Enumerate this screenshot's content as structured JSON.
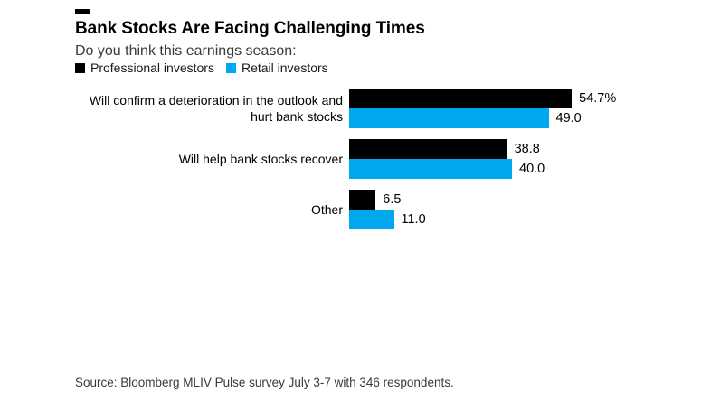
{
  "header": {
    "title": "Bank Stocks Are Facing Challenging Times",
    "subtitle": "Do you think this earnings season:"
  },
  "legend": {
    "items": [
      {
        "label": "Professional investors",
        "color": "#000000"
      },
      {
        "label": "Retail investors",
        "color": "#00a8f0"
      }
    ]
  },
  "chart_data": {
    "type": "bar",
    "orientation": "horizontal",
    "title": "Bank Stocks Are Facing Challenging Times",
    "subtitle": "Do you think this earnings season:",
    "categories": [
      "Will confirm a deterioration in the outlook and hurt bank stocks",
      "Will help bank stocks recover",
      "Other"
    ],
    "category_label_lines": [
      [
        "Will confirm a deterioration in the outlook and",
        "hurt bank stocks"
      ],
      [
        "Will help bank stocks recover"
      ],
      [
        "Other"
      ]
    ],
    "series": [
      {
        "name": "Professional investors",
        "color": "#000000",
        "values": [
          54.7,
          38.8,
          6.5
        ]
      },
      {
        "name": "Retail investors",
        "color": "#00a8f0",
        "values": [
          49.0,
          40.0,
          11.0
        ]
      }
    ],
    "value_labels": [
      [
        "54.7%",
        "49.0"
      ],
      [
        "38.8",
        "40.0"
      ],
      [
        "6.5",
        "11.0"
      ]
    ],
    "units": "percent",
    "xlim": [
      0,
      60
    ],
    "grid": false,
    "axis_ticks": "none",
    "legend_position": "top-left"
  },
  "footer": {
    "source": "Source: Bloomberg MLIV Pulse survey July 3-7 with 346 respondents."
  },
  "colors": {
    "professional": "#000000",
    "retail": "#00a8f0",
    "text_primary": "#000000",
    "text_secondary": "#3a3a3a",
    "background": "#ffffff"
  }
}
